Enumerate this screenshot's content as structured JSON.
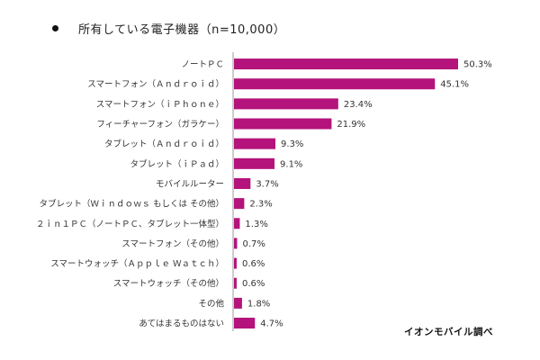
{
  "chart_data": {
    "type": "bar",
    "orientation": "horizontal",
    "title": "所有している電子機器（n=10,000）",
    "categories": [
      "ノートＰＣ",
      "スマートフォン（Ａｎｄｒｏｉｄ）",
      "スマートフォン（ｉＰｈｏｎｅ）",
      "フィーチャーフォン（ガラケー）",
      "タブレット（Ａｎｄｒｏｉｄ）",
      "タブレット（ｉＰａｄ）",
      "モバイルルーター",
      "タブレット（Ｗｉｎｄｏｗｓ もしくは その他）",
      "２ｉｎ１ＰＣ（ノートＰＣ、タブレット一体型）",
      "スマートフォン（その他）",
      "スマートウォッチ（Ａｐｐｌｅ Ｗａｔｃｈ）",
      "スマートウォッチ（その他）",
      "その他",
      "あてはまるものはない"
    ],
    "values": [
      50.3,
      45.1,
      23.4,
      21.9,
      9.3,
      9.1,
      3.7,
      2.3,
      1.3,
      0.7,
      0.6,
      0.6,
      1.8,
      4.7
    ],
    "value_labels": [
      "50.3%",
      "45.1%",
      "23.4%",
      "21.9%",
      "9.3%",
      "9.1%",
      "3.7%",
      "2.3%",
      "1.3%",
      "0.7%",
      "0.6%",
      "0.6%",
      "1.8%",
      "4.7%"
    ],
    "unit": "%",
    "xlim": [
      0,
      60
    ],
    "grid": false,
    "bar_color": "#b3137b"
  },
  "source_note": "イオンモバイル調べ"
}
